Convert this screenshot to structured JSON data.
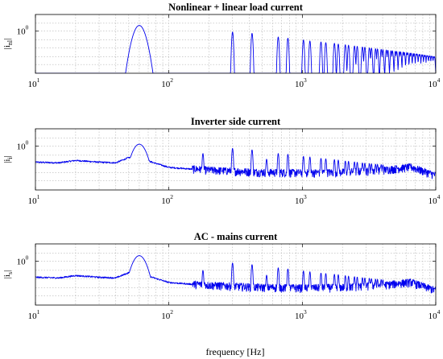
{
  "figure": {
    "xlabel": "frequency [Hz]",
    "series_color": "#0000ee",
    "grid_color": "#b4b4b4"
  },
  "chart_data": [
    {
      "type": "line",
      "title": "Nonlinear + linear load current",
      "ylabel": "|i_nl|",
      "ylabel_main": "|i",
      "ylabel_sub": "nl",
      "ylabel_end": "|",
      "xscale": "log",
      "yscale": "log",
      "xlim": [
        10,
        10000
      ],
      "ylim": [
        0.003,
        10
      ],
      "xticks": [
        10,
        100,
        1000,
        10000
      ],
      "xtick_labels": [
        "10",
        "10",
        "10",
        "10"
      ],
      "xtick_exps": [
        "1",
        "2",
        "3",
        "4"
      ],
      "ytick_labels": [
        "10"
      ],
      "ytick_exps": [
        "0"
      ],
      "grid": true,
      "baseline": 0.002,
      "peaks": [
        {
          "freq": 60,
          "amp": 2.2,
          "width_dec": 0.04
        },
        {
          "freq": 300,
          "amp": 0.9
        },
        {
          "freq": 420,
          "amp": 0.75
        },
        {
          "freq": 660,
          "amp": 0.45
        },
        {
          "freq": 780,
          "amp": 0.38
        },
        {
          "freq": 1020,
          "amp": 0.3
        },
        {
          "freq": 1140,
          "amp": 0.26
        },
        {
          "freq": 1380,
          "amp": 0.23
        },
        {
          "freq": 1500,
          "amp": 0.21
        },
        {
          "freq": 1740,
          "amp": 0.19
        },
        {
          "freq": 1860,
          "amp": 0.17
        },
        {
          "freq": 2100,
          "amp": 0.155
        },
        {
          "freq": 2220,
          "amp": 0.145
        },
        {
          "freq": 2460,
          "amp": 0.13
        },
        {
          "freq": 2580,
          "amp": 0.125
        },
        {
          "freq": 2820,
          "amp": 0.115
        },
        {
          "freq": 2940,
          "amp": 0.11
        },
        {
          "freq": 3180,
          "amp": 0.1
        },
        {
          "freq": 3300,
          "amp": 0.097
        },
        {
          "freq": 3540,
          "amp": 0.09
        },
        {
          "freq": 3660,
          "amp": 0.087
        },
        {
          "freq": 3900,
          "amp": 0.082
        },
        {
          "freq": 4020,
          "amp": 0.079
        },
        {
          "freq": 4260,
          "amp": 0.075
        },
        {
          "freq": 4380,
          "amp": 0.072
        },
        {
          "freq": 4620,
          "amp": 0.069
        },
        {
          "freq": 4740,
          "amp": 0.067
        },
        {
          "freq": 4980,
          "amp": 0.064
        },
        {
          "freq": 5100,
          "amp": 0.062
        },
        {
          "freq": 5340,
          "amp": 0.06
        },
        {
          "freq": 5460,
          "amp": 0.058
        },
        {
          "freq": 5700,
          "amp": 0.056
        },
        {
          "freq": 5820,
          "amp": 0.054
        },
        {
          "freq": 6060,
          "amp": 0.052
        },
        {
          "freq": 6180,
          "amp": 0.051
        },
        {
          "freq": 6420,
          "amp": 0.049
        },
        {
          "freq": 6540,
          "amp": 0.048
        },
        {
          "freq": 6780,
          "amp": 0.046
        },
        {
          "freq": 6900,
          "amp": 0.045
        },
        {
          "freq": 7140,
          "amp": 0.044
        },
        {
          "freq": 7260,
          "amp": 0.043
        },
        {
          "freq": 7500,
          "amp": 0.041
        },
        {
          "freq": 7620,
          "amp": 0.04
        },
        {
          "freq": 7860,
          "amp": 0.039
        },
        {
          "freq": 7980,
          "amp": 0.038
        },
        {
          "freq": 8220,
          "amp": 0.037
        },
        {
          "freq": 8340,
          "amp": 0.036
        },
        {
          "freq": 8580,
          "amp": 0.035
        },
        {
          "freq": 8700,
          "amp": 0.034
        },
        {
          "freq": 8940,
          "amp": 0.033
        },
        {
          "freq": 9060,
          "amp": 0.033
        },
        {
          "freq": 9300,
          "amp": 0.032
        },
        {
          "freq": 9420,
          "amp": 0.031
        },
        {
          "freq": 9660,
          "amp": 0.03
        },
        {
          "freq": 9780,
          "amp": 0.03
        }
      ]
    },
    {
      "type": "line",
      "title": "Inverter side current",
      "ylabel": "|i_i|",
      "ylabel_main": "|i",
      "ylabel_sub": "i",
      "ylabel_end": "|",
      "xscale": "log",
      "yscale": "log",
      "xlim": [
        10,
        10000
      ],
      "ylim": [
        0.003,
        10
      ],
      "xticks": [
        10,
        100,
        1000,
        10000
      ],
      "xtick_labels": [
        "10",
        "10",
        "10",
        "10"
      ],
      "xtick_exps": [
        "1",
        "2",
        "3",
        "4"
      ],
      "ytick_labels": [
        "10"
      ],
      "ytick_exps": [
        "0"
      ],
      "grid": true,
      "floor": [
        {
          "freq": 10,
          "amp": 0.12
        },
        {
          "freq": 15,
          "amp": 0.11
        },
        {
          "freq": 20,
          "amp": 0.15
        },
        {
          "freq": 30,
          "amp": 0.12
        },
        {
          "freq": 40,
          "amp": 0.11
        },
        {
          "freq": 50,
          "amp": 0.22
        },
        {
          "freq": 70,
          "amp": 0.14
        },
        {
          "freq": 100,
          "amp": 0.06
        },
        {
          "freq": 200,
          "amp": 0.04
        },
        {
          "freq": 500,
          "amp": 0.03
        },
        {
          "freq": 1000,
          "amp": 0.028
        },
        {
          "freq": 2000,
          "amp": 0.03
        },
        {
          "freq": 4000,
          "amp": 0.04
        },
        {
          "freq": 6500,
          "amp": 0.06
        },
        {
          "freq": 10000,
          "amp": 0.02
        }
      ],
      "peaks": [
        {
          "freq": 60,
          "amp": 1.3,
          "width_dec": 0.05
        },
        {
          "freq": 180,
          "amp": 0.38
        },
        {
          "freq": 300,
          "amp": 0.75
        },
        {
          "freq": 420,
          "amp": 0.62
        },
        {
          "freq": 540,
          "amp": 0.18
        },
        {
          "freq": 660,
          "amp": 0.38
        },
        {
          "freq": 780,
          "amp": 0.34
        },
        {
          "freq": 1020,
          "amp": 0.26
        },
        {
          "freq": 1140,
          "amp": 0.24
        },
        {
          "freq": 1380,
          "amp": 0.2
        },
        {
          "freq": 1500,
          "amp": 0.19
        },
        {
          "freq": 1740,
          "amp": 0.17
        },
        {
          "freq": 1860,
          "amp": 0.16
        },
        {
          "freq": 2100,
          "amp": 0.14
        },
        {
          "freq": 2220,
          "amp": 0.135
        },
        {
          "freq": 2460,
          "amp": 0.125
        },
        {
          "freq": 2580,
          "amp": 0.12
        },
        {
          "freq": 2820,
          "amp": 0.11
        },
        {
          "freq": 2940,
          "amp": 0.105
        },
        {
          "freq": 3180,
          "amp": 0.1
        },
        {
          "freq": 3300,
          "amp": 0.097
        },
        {
          "freq": 3540,
          "amp": 0.093
        },
        {
          "freq": 3660,
          "amp": 0.09
        },
        {
          "freq": 3900,
          "amp": 0.087
        },
        {
          "freq": 4020,
          "amp": 0.085
        }
      ]
    },
    {
      "type": "line",
      "title": "AC - mains current",
      "ylabel": "|i_s|",
      "ylabel_main": "|i",
      "ylabel_sub": "s",
      "ylabel_end": "|",
      "xlabel": "frequency [Hz]",
      "xscale": "log",
      "yscale": "log",
      "xlim": [
        10,
        10000
      ],
      "ylim": [
        0.003,
        10
      ],
      "xticks": [
        10,
        100,
        1000,
        10000
      ],
      "xtick_labels": [
        "10",
        "10",
        "10",
        "10"
      ],
      "xtick_exps": [
        "1",
        "2",
        "3",
        "4"
      ],
      "ytick_labels": [
        "10"
      ],
      "ytick_exps": [
        "0"
      ],
      "grid": true,
      "floor": [
        {
          "freq": 10,
          "amp": 0.12
        },
        {
          "freq": 15,
          "amp": 0.11
        },
        {
          "freq": 20,
          "amp": 0.15
        },
        {
          "freq": 30,
          "amp": 0.12
        },
        {
          "freq": 40,
          "amp": 0.11
        },
        {
          "freq": 50,
          "amp": 0.22
        },
        {
          "freq": 70,
          "amp": 0.14
        },
        {
          "freq": 100,
          "amp": 0.06
        },
        {
          "freq": 200,
          "amp": 0.04
        },
        {
          "freq": 500,
          "amp": 0.03
        },
        {
          "freq": 1000,
          "amp": 0.028
        },
        {
          "freq": 2000,
          "amp": 0.03
        },
        {
          "freq": 4000,
          "amp": 0.04
        },
        {
          "freq": 6500,
          "amp": 0.06
        },
        {
          "freq": 10000,
          "amp": 0.02
        }
      ],
      "peaks": [
        {
          "freq": 60,
          "amp": 2.1,
          "width_dec": 0.05
        },
        {
          "freq": 180,
          "amp": 0.3
        },
        {
          "freq": 300,
          "amp": 0.8
        },
        {
          "freq": 420,
          "amp": 0.65
        },
        {
          "freq": 540,
          "amp": 0.16
        },
        {
          "freq": 660,
          "amp": 0.42
        },
        {
          "freq": 780,
          "amp": 0.36
        },
        {
          "freq": 1020,
          "amp": 0.28
        },
        {
          "freq": 1140,
          "amp": 0.25
        },
        {
          "freq": 1380,
          "amp": 0.21
        },
        {
          "freq": 1500,
          "amp": 0.2
        },
        {
          "freq": 1740,
          "amp": 0.18
        },
        {
          "freq": 1860,
          "amp": 0.17
        },
        {
          "freq": 2100,
          "amp": 0.15
        },
        {
          "freq": 2220,
          "amp": 0.14
        },
        {
          "freq": 2460,
          "amp": 0.13
        },
        {
          "freq": 2580,
          "amp": 0.125
        },
        {
          "freq": 2820,
          "amp": 0.115
        },
        {
          "freq": 2940,
          "amp": 0.11
        },
        {
          "freq": 3180,
          "amp": 0.105
        },
        {
          "freq": 3300,
          "amp": 0.1
        },
        {
          "freq": 3540,
          "amp": 0.095
        },
        {
          "freq": 3660,
          "amp": 0.092
        },
        {
          "freq": 3900,
          "amp": 0.089
        },
        {
          "freq": 4020,
          "amp": 0.086
        }
      ]
    }
  ]
}
